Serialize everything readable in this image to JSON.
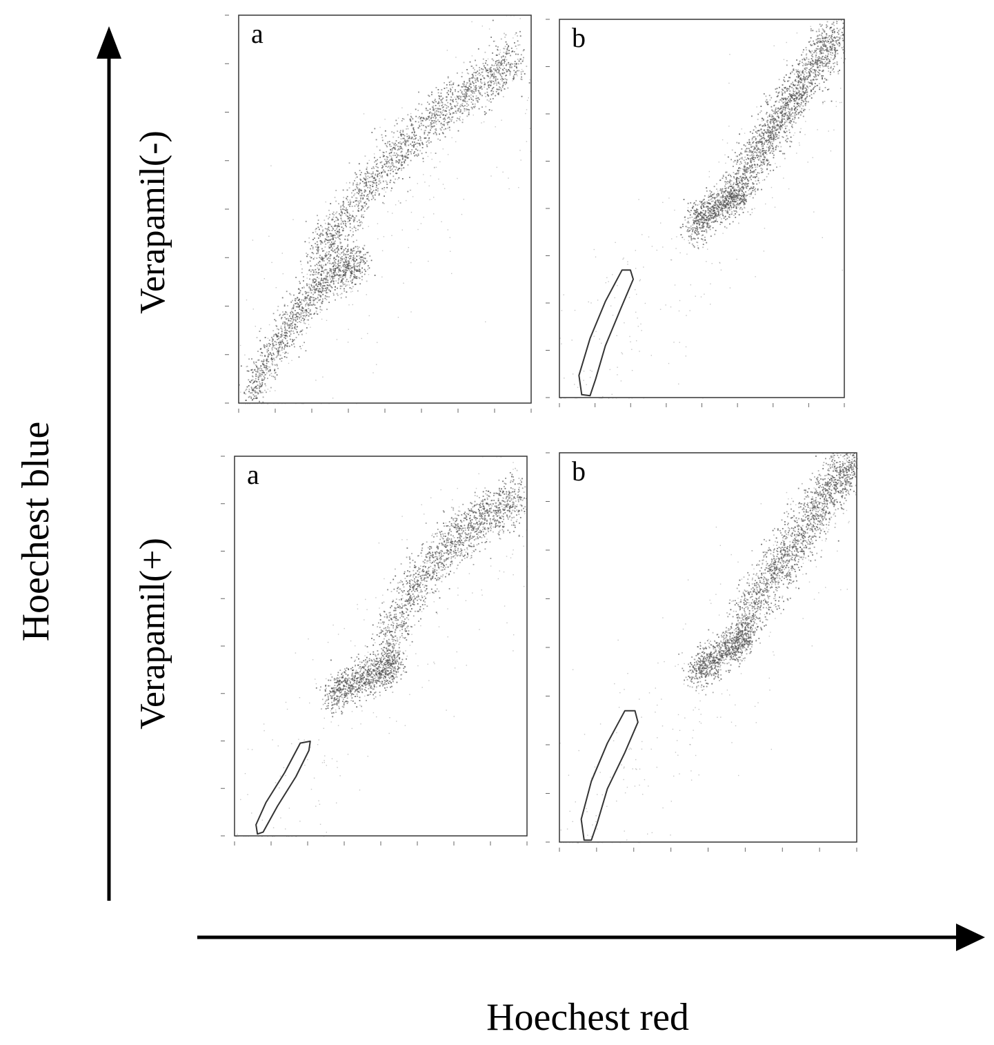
{
  "figure": {
    "y_axis_title": "Hoechest blue",
    "x_axis_title": "Hoechest red",
    "row_labels": [
      "Verapamil(-)",
      "Verapamil(+)"
    ]
  },
  "chart_data": [
    {
      "type": "scatter",
      "panel_label": "a",
      "row": "Verapamil(-)",
      "xlabel": "",
      "ylabel": "",
      "xlim": [
        0,
        1023
      ],
      "ylim": [
        0,
        1023
      ],
      "gate": false,
      "populations": [
        {
          "name": "",
          "x": [
            40,
            100,
            160,
            220,
            280,
            340,
            390,
            420
          ],
          "y": [
            30,
            110,
            190,
            260,
            310,
            350,
            365,
            370
          ],
          "points": 1300,
          "spread": 28
        },
        {
          "name": "",
          "x": [
            260,
            340,
            420,
            500,
            580,
            660,
            740,
            820,
            900,
            970
          ],
          "y": [
            380,
            460,
            540,
            620,
            680,
            740,
            790,
            830,
            870,
            910
          ],
          "points": 1800,
          "spread": 34
        }
      ]
    },
    {
      "type": "scatter",
      "panel_label": "b",
      "row": "Verapamil(-)",
      "xlabel": "",
      "ylabel": "",
      "xlim": [
        0,
        1023
      ],
      "ylim": [
        0,
        1023
      ],
      "gate": true,
      "gate_polygon": [
        [
          80,
          8
        ],
        [
          70,
          60
        ],
        [
          110,
          160
        ],
        [
          165,
          260
        ],
        [
          225,
          345
        ],
        [
          255,
          345
        ],
        [
          265,
          320
        ],
        [
          220,
          240
        ],
        [
          165,
          140
        ],
        [
          130,
          50
        ],
        [
          110,
          5
        ]
      ],
      "populations": [
        {
          "name": "",
          "x": [
            470,
            520,
            570,
            620,
            660
          ],
          "y": [
            460,
            490,
            520,
            540,
            560
          ],
          "points": 900,
          "spread": 24
        },
        {
          "name": "",
          "x": [
            640,
            700,
            760,
            820,
            880,
            940,
            1000
          ],
          "y": [
            580,
            650,
            720,
            790,
            860,
            930,
            990
          ],
          "points": 1700,
          "spread": 34
        }
      ]
    },
    {
      "type": "scatter",
      "panel_label": "a",
      "row": "Verapamil(+)",
      "xlabel": "",
      "ylabel": "",
      "xlim": [
        0,
        1023
      ],
      "ylim": [
        0,
        1023
      ],
      "gate": true,
      "gate_polygon": [
        [
          80,
          5
        ],
        [
          75,
          30
        ],
        [
          110,
          90
        ],
        [
          175,
          170
        ],
        [
          230,
          250
        ],
        [
          265,
          255
        ],
        [
          260,
          230
        ],
        [
          215,
          160
        ],
        [
          150,
          80
        ],
        [
          100,
          10
        ]
      ],
      "populations": [
        {
          "name": "",
          "x": [
            330,
            380,
            430,
            480,
            530,
            560
          ],
          "y": [
            380,
            400,
            420,
            440,
            455,
            470
          ],
          "points": 1000,
          "spread": 26
        },
        {
          "name": "",
          "x": [
            520,
            580,
            640,
            700,
            760,
            820,
            880,
            940,
            990
          ],
          "y": [
            520,
            600,
            680,
            740,
            790,
            830,
            860,
            890,
            920
          ],
          "points": 1500,
          "spread": 34
        }
      ]
    },
    {
      "type": "scatter",
      "panel_label": "b",
      "row": "Verapamil(+)",
      "xlabel": "",
      "ylabel": "",
      "xlim": [
        0,
        1023
      ],
      "ylim": [
        0,
        1023
      ],
      "gate": true,
      "gate_polygon": [
        [
          85,
          5
        ],
        [
          75,
          60
        ],
        [
          110,
          160
        ],
        [
          165,
          260
        ],
        [
          225,
          345
        ],
        [
          260,
          345
        ],
        [
          270,
          315
        ],
        [
          225,
          235
        ],
        [
          165,
          140
        ],
        [
          130,
          50
        ],
        [
          110,
          5
        ]
      ],
      "populations": [
        {
          "name": "",
          "x": [
            460,
            510,
            560,
            610,
            650
          ],
          "y": [
            440,
            470,
            500,
            525,
            545
          ],
          "points": 900,
          "spread": 24
        },
        {
          "name": "",
          "x": [
            620,
            680,
            740,
            800,
            860,
            920,
            980,
            1015
          ],
          "y": [
            570,
            640,
            710,
            780,
            850,
            920,
            980,
            1010
          ],
          "points": 1800,
          "spread": 36
        }
      ]
    }
  ]
}
